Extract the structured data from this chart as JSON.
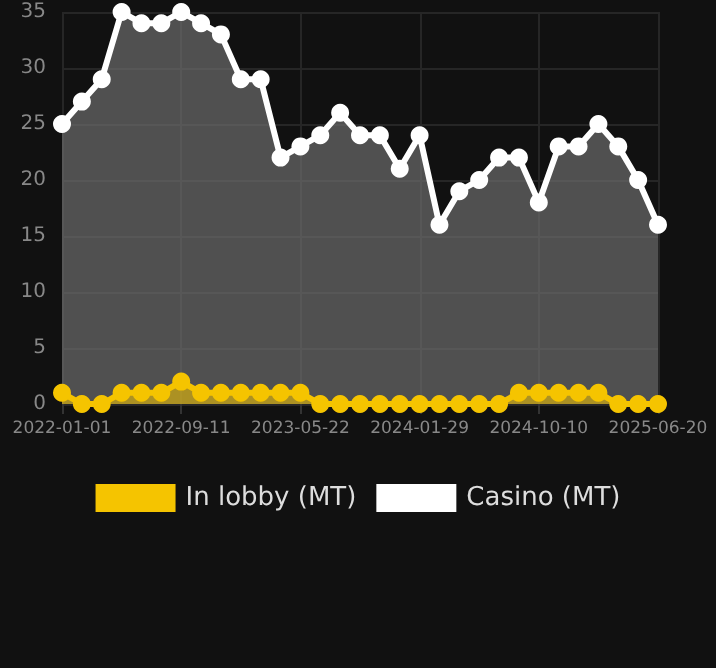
{
  "chart_data": {
    "type": "area",
    "categories": [
      "2022-01-01",
      null,
      null,
      null,
      null,
      null,
      "2022-09-11",
      null,
      null,
      null,
      null,
      null,
      "2023-05-22",
      null,
      null,
      null,
      null,
      null,
      "2024-01-29",
      null,
      null,
      null,
      null,
      null,
      "2024-10-10",
      null,
      null,
      null,
      null,
      null,
      "2025-06-20"
    ],
    "series": [
      {
        "name": "In lobby (MT)",
        "color": "#f5c400",
        "values": [
          1,
          0,
          0,
          1,
          1,
          1,
          2,
          1,
          1,
          1,
          1,
          1,
          1,
          0,
          0,
          0,
          0,
          0,
          0,
          0,
          0,
          0,
          0,
          1,
          1,
          1,
          1,
          1,
          0,
          0,
          0
        ]
      },
      {
        "name": "Casino (MT)",
        "color": "#ffffff",
        "values": [
          25,
          27,
          29,
          35,
          34,
          34,
          35,
          34,
          33,
          29,
          29,
          22,
          23,
          24,
          26,
          24,
          24,
          21,
          24,
          16,
          19,
          20,
          22,
          22,
          18,
          23,
          23,
          25,
          23,
          20,
          16
        ]
      }
    ],
    "ylim": [
      0,
      35
    ],
    "yticks": [
      0,
      5,
      10,
      15,
      20,
      25,
      30,
      35
    ],
    "grid": true,
    "legend": "bottom",
    "marker": "circle"
  }
}
